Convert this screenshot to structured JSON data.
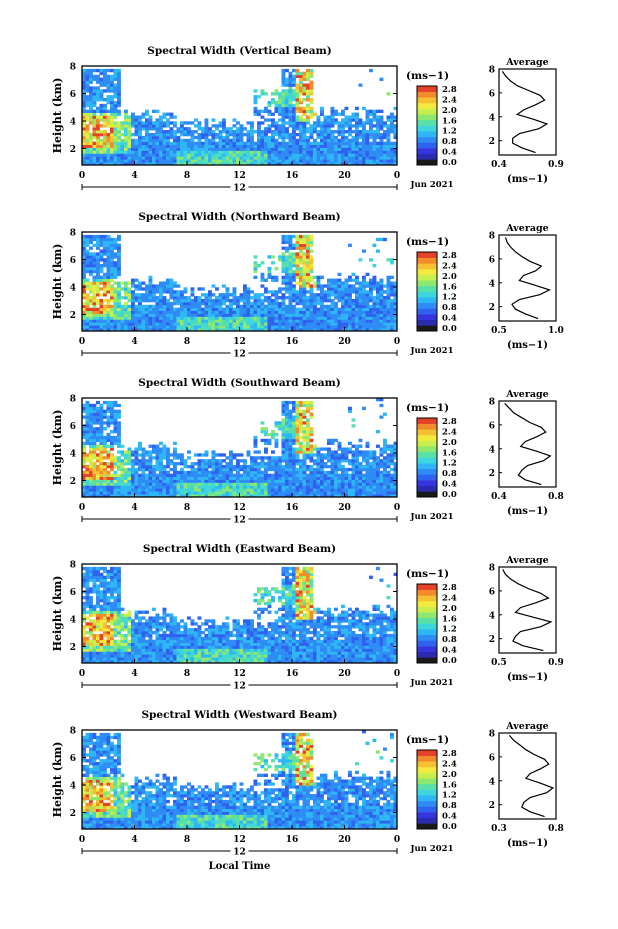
{
  "colorbar": {
    "colors": [
      "#1a1a1a",
      "#2b2bb0",
      "#3535dd",
      "#2f62ee",
      "#2f8cf5",
      "#2fb6f5",
      "#3dd6dc",
      "#58e0a8",
      "#8ee870",
      "#c8ee50",
      "#f2ea3c",
      "#f5c132",
      "#f28b2c",
      "#e4432a"
    ]
  },
  "chart_data": [
    {
      "type": "heatmap",
      "title": "Spectral Width (Vertical Beam)",
      "ylabel": "Height (km)",
      "unit_label": "(ms−1)",
      "x_ticks": [
        "0",
        "4",
        "8",
        "12",
        "16",
        "20",
        "0"
      ],
      "x_day_label": "12",
      "date_label": "Jun 2021",
      "y_ticks": [
        "2",
        "4",
        "6",
        "8"
      ],
      "ylim": [
        0.8,
        8
      ],
      "colorbar_ticks": [
        "0.0",
        "0.4",
        "0.8",
        "1.2",
        "1.6",
        "2.0",
        "2.4",
        "2.8"
      ],
      "profile": {
        "title": "Average",
        "xlabel": "(ms−1)",
        "x_ticks": [
          "0.4",
          "0.9"
        ],
        "xlim": [
          0.4,
          0.9
        ],
        "y_ticks": [
          "2",
          "4",
          "6",
          "8"
        ],
        "ylim": [
          0.8,
          8
        ],
        "heights": [
          1.0,
          1.4,
          1.8,
          2.2,
          2.6,
          3.0,
          3.4,
          3.8,
          4.2,
          4.6,
          5.0,
          5.4,
          5.8,
          6.2,
          6.6,
          7.0,
          7.4,
          7.8
        ],
        "values": [
          0.72,
          0.6,
          0.52,
          0.52,
          0.58,
          0.75,
          0.82,
          0.7,
          0.56,
          0.62,
          0.72,
          0.8,
          0.76,
          0.66,
          0.56,
          0.5,
          0.46,
          0.43
        ]
      }
    },
    {
      "type": "heatmap",
      "title": "Spectral Width (Northward Beam)",
      "ylabel": "Height (km)",
      "unit_label": "(ms−1)",
      "x_ticks": [
        "0",
        "4",
        "8",
        "12",
        "16",
        "20",
        "0"
      ],
      "x_day_label": "12",
      "date_label": "Jun 2021",
      "y_ticks": [
        "2",
        "4",
        "6",
        "8"
      ],
      "ylim": [
        0.8,
        8
      ],
      "colorbar_ticks": [
        "0.0",
        "0.4",
        "0.8",
        "1.2",
        "1.6",
        "2.0",
        "2.4",
        "2.8"
      ],
      "profile": {
        "title": "Average",
        "xlabel": "(ms−1)",
        "x_ticks": [
          "0.5",
          "1.0"
        ],
        "xlim": [
          0.3,
          1.0
        ],
        "y_ticks": [
          "2",
          "4",
          "6",
          "8"
        ],
        "ylim": [
          0.8,
          8
        ],
        "heights": [
          1.0,
          1.4,
          1.8,
          2.2,
          2.6,
          3.0,
          3.4,
          3.8,
          4.2,
          4.6,
          5.0,
          5.4,
          5.8,
          6.2,
          6.6,
          7.0,
          7.4,
          7.8
        ],
        "values": [
          0.78,
          0.62,
          0.5,
          0.46,
          0.55,
          0.8,
          0.92,
          0.74,
          0.55,
          0.6,
          0.75,
          0.82,
          0.68,
          0.58,
          0.5,
          0.44,
          0.4,
          0.38
        ]
      }
    },
    {
      "type": "heatmap",
      "title": "Spectral Width (Southward Beam)",
      "ylabel": "Height (km)",
      "unit_label": "(ms−1)",
      "x_ticks": [
        "0",
        "4",
        "8",
        "12",
        "16",
        "20",
        "0"
      ],
      "x_day_label": "12",
      "date_label": "Jun 2021",
      "y_ticks": [
        "2",
        "4",
        "6",
        "8"
      ],
      "ylim": [
        0.8,
        8
      ],
      "colorbar_ticks": [
        "0.0",
        "0.4",
        "0.8",
        "1.2",
        "1.6",
        "2.0",
        "2.4",
        "2.8"
      ],
      "profile": {
        "title": "Average",
        "xlabel": "(ms−1)",
        "x_ticks": [
          "0.4",
          "0.8"
        ],
        "xlim": [
          0.35,
          0.85
        ],
        "y_ticks": [
          "2",
          "4",
          "6",
          "8"
        ],
        "ylim": [
          0.8,
          8
        ],
        "heights": [
          1.0,
          1.4,
          1.8,
          2.2,
          2.6,
          3.0,
          3.4,
          3.8,
          4.2,
          4.6,
          5.0,
          5.4,
          5.8,
          6.2,
          6.6,
          7.0,
          7.4,
          7.8
        ],
        "values": [
          0.72,
          0.58,
          0.52,
          0.55,
          0.6,
          0.74,
          0.8,
          0.68,
          0.54,
          0.58,
          0.68,
          0.76,
          0.72,
          0.62,
          0.55,
          0.48,
          0.44,
          0.4
        ]
      }
    },
    {
      "type": "heatmap",
      "title": "Spectral Width (Eastward Beam)",
      "ylabel": "Height (km)",
      "unit_label": "(ms−1)",
      "x_ticks": [
        "0",
        "4",
        "8",
        "12",
        "16",
        "20",
        "0"
      ],
      "x_day_label": "12",
      "date_label": "Jun 2021",
      "y_ticks": [
        "2",
        "4",
        "6",
        "8"
      ],
      "ylim": [
        0.8,
        8
      ],
      "colorbar_ticks": [
        "0.0",
        "0.4",
        "0.8",
        "1.2",
        "1.6",
        "2.0",
        "2.4",
        "2.8"
      ],
      "profile": {
        "title": "Average",
        "xlabel": "(ms−1)",
        "x_ticks": [
          "0.5",
          "0.9"
        ],
        "xlim": [
          0.45,
          0.9
        ],
        "y_ticks": [
          "2",
          "4",
          "6",
          "8"
        ],
        "ylim": [
          0.8,
          8
        ],
        "heights": [
          1.0,
          1.4,
          1.8,
          2.2,
          2.6,
          3.0,
          3.4,
          3.8,
          4.2,
          4.6,
          5.0,
          5.4,
          5.8,
          6.2,
          6.6,
          7.0,
          7.4,
          7.8
        ],
        "values": [
          0.8,
          0.64,
          0.56,
          0.58,
          0.62,
          0.78,
          0.86,
          0.72,
          0.58,
          0.62,
          0.74,
          0.84,
          0.78,
          0.68,
          0.6,
          0.54,
          0.5,
          0.48
        ]
      }
    },
    {
      "type": "heatmap",
      "title": "Spectral Width (Westward Beam)",
      "ylabel": "Height (km)",
      "unit_label": "(ms−1)",
      "x_ticks": [
        "0",
        "4",
        "8",
        "12",
        "16",
        "20",
        "0"
      ],
      "x_day_label": "12",
      "x_label": "Local Time",
      "date_label": "Jun 2021",
      "y_ticks": [
        "2",
        "4",
        "6",
        "8"
      ],
      "ylim": [
        0.8,
        8
      ],
      "colorbar_ticks": [
        "0.0",
        "0.4",
        "0.8",
        "1.2",
        "1.6",
        "2.0",
        "2.4",
        "2.8"
      ],
      "profile": {
        "title": "Average",
        "xlabel": "(ms−1)",
        "x_ticks": [
          "0.3",
          "0.8"
        ],
        "xlim": [
          0.3,
          0.85
        ],
        "y_ticks": [
          "2",
          "4",
          "6",
          "8"
        ],
        "ylim": [
          0.8,
          8
        ],
        "heights": [
          1.0,
          1.4,
          1.8,
          2.2,
          2.6,
          3.0,
          3.4,
          3.8,
          4.2,
          4.6,
          5.0,
          5.4,
          5.8,
          6.2,
          6.6,
          7.0,
          7.4,
          7.8
        ],
        "values": [
          0.74,
          0.6,
          0.52,
          0.54,
          0.6,
          0.76,
          0.82,
          0.7,
          0.56,
          0.6,
          0.7,
          0.78,
          0.74,
          0.64,
          0.56,
          0.5,
          0.44,
          0.4
        ]
      }
    }
  ]
}
